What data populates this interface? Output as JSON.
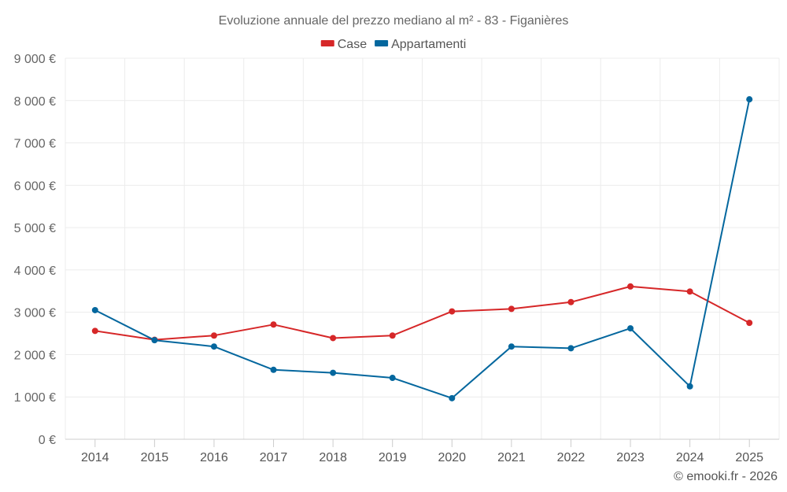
{
  "chart_data": {
    "type": "line",
    "title": "Evoluzione annuale del prezzo mediano al m² - 83 - Figanières",
    "categories": [
      "2014",
      "2015",
      "2016",
      "2017",
      "2018",
      "2019",
      "2020",
      "2021",
      "2022",
      "2023",
      "2024",
      "2025"
    ],
    "series": [
      {
        "name": "Case",
        "color": "#d62728",
        "values": [
          2560,
          2350,
          2450,
          2710,
          2390,
          2450,
          3020,
          3080,
          3240,
          3610,
          3490,
          2750
        ]
      },
      {
        "name": "Appartamenti",
        "color": "#04679e",
        "values": [
          3050,
          2340,
          2190,
          1640,
          1570,
          1450,
          970,
          2190,
          2150,
          2620,
          1250,
          8030
        ]
      }
    ],
    "y_ticks": [
      0,
      1000,
      2000,
      3000,
      4000,
      5000,
      6000,
      7000,
      8000,
      9000
    ],
    "y_tick_labels": [
      "0 €",
      "1 000 €",
      "2 000 €",
      "3 000 €",
      "4 000 €",
      "5 000 €",
      "6 000 €",
      "7 000 €",
      "8 000 €",
      "9 000 €"
    ],
    "ylim": [
      0,
      9000
    ],
    "xlabel": "",
    "ylabel": "",
    "grid": true,
    "legend_position": "top-center"
  },
  "credit": "© emooki.fr - 2026"
}
